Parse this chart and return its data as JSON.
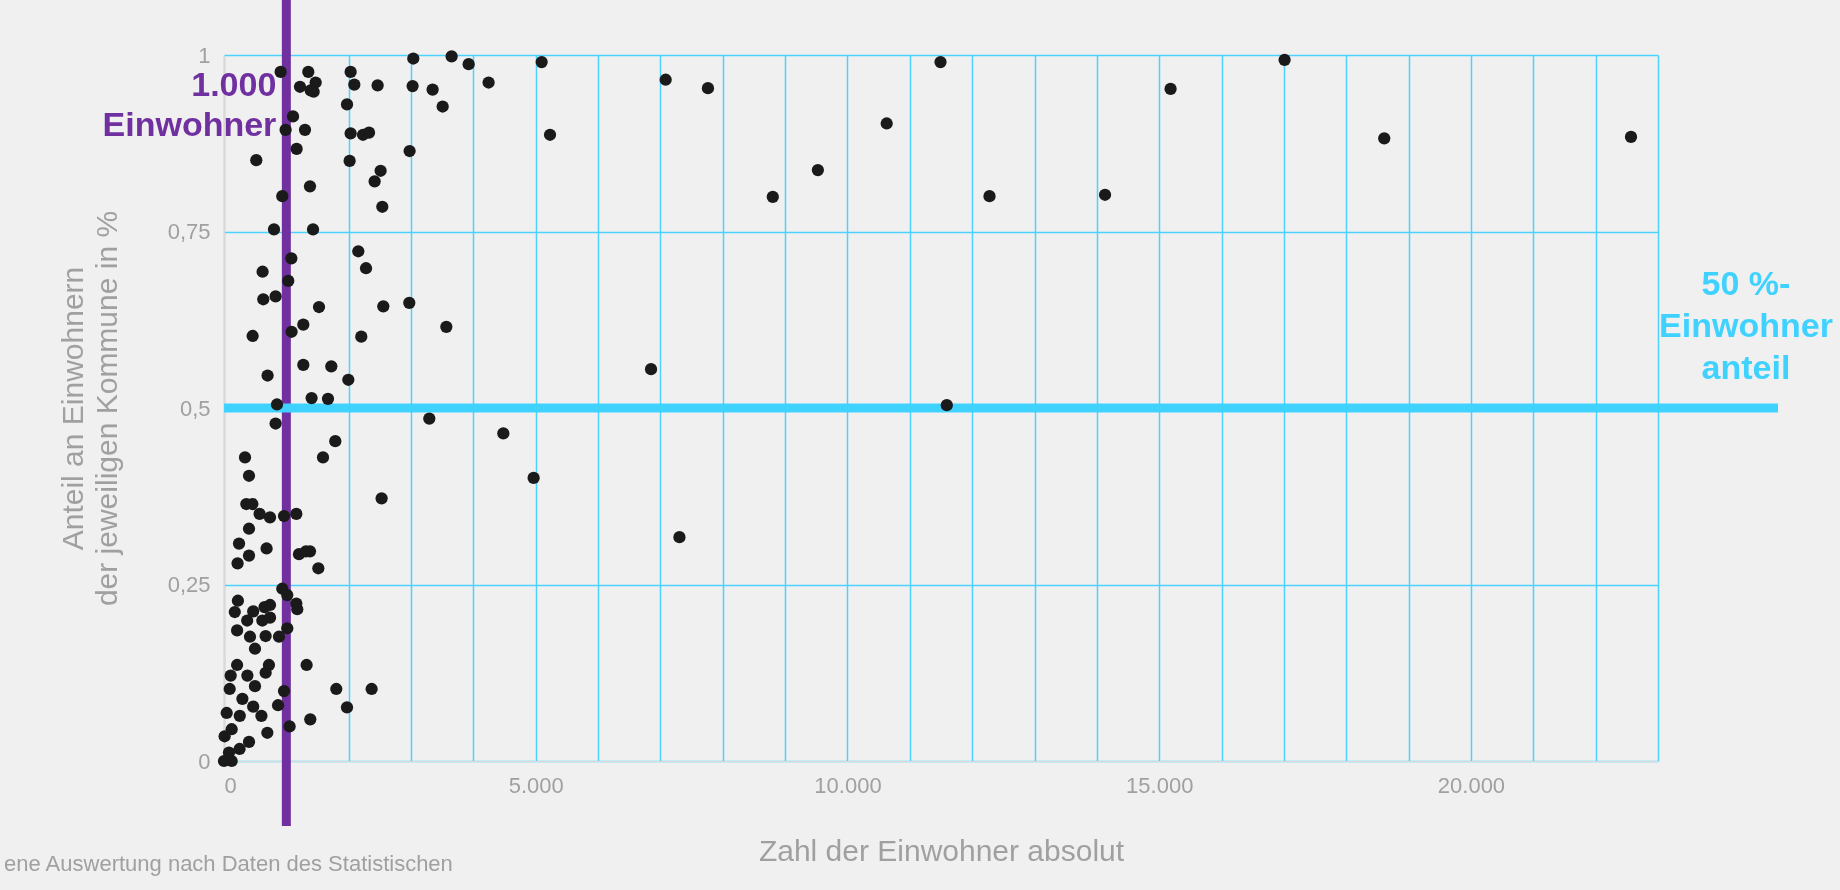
{
  "chart_data": {
    "type": "scatter",
    "xlabel": "Zahl der Einwohner absolut",
    "ylabel": "Anteil an Einwohnern\nder jeweiligen Kommune in %",
    "xlim": [
      0,
      23000
    ],
    "xticks": [
      0,
      {
        "value": 1000,
        "label": null
      },
      {
        "value": 2000,
        "label": null
      },
      {
        "value": 3000,
        "label": null
      },
      {
        "value": 4000,
        "label": null
      },
      {
        "value": 5000,
        "label": "5.000"
      },
      {
        "value": 6000,
        "label": null
      },
      {
        "value": 7000,
        "label": null
      },
      {
        "value": 8000,
        "label": null
      },
      {
        "value": 9000,
        "label": null
      },
      {
        "value": 10000,
        "label": "10.000"
      },
      {
        "value": 11000,
        "label": null
      },
      {
        "value": 12000,
        "label": null
      },
      {
        "value": 13000,
        "label": null
      },
      {
        "value": 14000,
        "label": null
      },
      {
        "value": 15000,
        "label": "15.000"
      },
      {
        "value": 16000,
        "label": null
      },
      {
        "value": 17000,
        "label": null
      },
      {
        "value": 18000,
        "label": null
      },
      {
        "value": 19000,
        "label": null
      },
      {
        "value": 20000,
        "label": "20.000"
      },
      {
        "value": 21000,
        "label": null
      },
      {
        "value": 22000,
        "label": null
      },
      {
        "value": 23000,
        "label": null
      }
    ],
    "ylim": [
      0,
      1
    ],
    "yticks": [
      0,
      {
        "value": 0.25,
        "label": "0,25"
      },
      {
        "value": 0.5,
        "label": "0,5"
      },
      {
        "value": 0.75,
        "label": "0,75"
      },
      1
    ],
    "grid": true,
    "marker": "circle",
    "ref_lines": [
      {
        "axis": "x",
        "value": 1000,
        "label": "1.000\nEinwohner",
        "color": "#7030a0"
      },
      {
        "axis": "y",
        "value": 0.5,
        "label": "50 %-\nEinwohner\nanteil",
        "color": "#40d2ff"
      }
    ],
    "annotations": [
      "ene Auswertung nach Daten des Statistischen"
    ],
    "series": [
      {
        "color": "#1a1a1a",
        "x": [
          908,
          1352,
          2031,
          3036,
          3651,
          3924,
          5095,
          7084,
          1219,
          1470,
          1438,
          1390,
          2090,
          2464,
          3025,
          3346,
          1973,
          3507,
          1107,
          988,
          1299,
          2031,
          2230,
          2326,
          5229,
          1165,
          2977,
          518,
          2015,
          2512,
          2416,
          1379,
          935,
          2539,
          802,
          1428,
          2154,
          1080,
          2278,
          619,
          1031,
          630,
          828,
          1524,
          2555,
          2972,
          3566,
          459,
          1084,
          1272,
          2202,
          699,
          1272,
          1721,
          1994,
          6849,
          1405,
          1668,
          850,
          828,
          3293,
          4480,
          1785,
          1588,
          337,
          4966,
          401,
          2528,
          358,
          455,
          571,
          738,
          962,
          1160,
          401,
          241,
          683,
          401,
          218,
          1203,
          1379,
          1315,
          1513,
          935,
          1015,
          1160,
          1175,
          738,
          650,
          223,
          468,
          173,
          372,
          615,
          738,
          1015,
          210,
          417,
          668,
          882,
          497,
          1325,
          210,
          721,
          107,
          375,
          668,
          497,
          962,
          1801,
          2368,
          1973,
          91,
          295,
          867,
          468,
          43,
          253,
          600,
          1384,
          1052,
          695,
          401,
          123,
          0,
          123,
          250,
          10,
          80,
          4244,
          7762,
          8802,
          9525,
          10629,
          11492,
          12278,
          14131,
          15182,
          17011,
          18609,
          22567,
          7305,
          11593
        ],
        "values": [
          0.976,
          0.976,
          0.976,
          0.995,
          0.998,
          0.987,
          0.99,
          0.965,
          0.955,
          0.961,
          0.948,
          0.95,
          0.958,
          0.957,
          0.956,
          0.951,
          0.93,
          0.927,
          0.913,
          0.894,
          0.894,
          0.889,
          0.887,
          0.89,
          0.887,
          0.867,
          0.864,
          0.851,
          0.85,
          0.836,
          0.821,
          0.814,
          0.8,
          0.785,
          0.753,
          0.753,
          0.722,
          0.712,
          0.698,
          0.693,
          0.68,
          0.654,
          0.658,
          0.643,
          0.644,
          0.649,
          0.615,
          0.602,
          0.608,
          0.618,
          0.601,
          0.546,
          0.561,
          0.559,
          0.54,
          0.555,
          0.514,
          0.513,
          0.505,
          0.478,
          0.485,
          0.464,
          0.453,
          0.43,
          0.43,
          0.401,
          0.404,
          0.372,
          0.364,
          0.364,
          0.35,
          0.345,
          0.347,
          0.35,
          0.329,
          0.308,
          0.301,
          0.291,
          0.28,
          0.293,
          0.297,
          0.297,
          0.273,
          0.244,
          0.235,
          0.223,
          0.215,
          0.221,
          0.218,
          0.227,
          0.212,
          0.211,
          0.199,
          0.199,
          0.203,
          0.188,
          0.185,
          0.176,
          0.177,
          0.176,
          0.159,
          0.136,
          0.136,
          0.136,
          0.121,
          0.121,
          0.125,
          0.106,
          0.099,
          0.102,
          0.102,
          0.076,
          0.102,
          0.088,
          0.079,
          0.077,
          0.068,
          0.064,
          0.064,
          0.059,
          0.049,
          0.04,
          0.027,
          0.045,
          0,
          0,
          0.017,
          0.035,
          0.012,
          0.961,
          0.953,
          0.799,
          0.837,
          0.903,
          0.99,
          0.8,
          0.802,
          0.952,
          0.993,
          0.882,
          0.884,
          0.317,
          0.504
        ]
      }
    ]
  }
}
